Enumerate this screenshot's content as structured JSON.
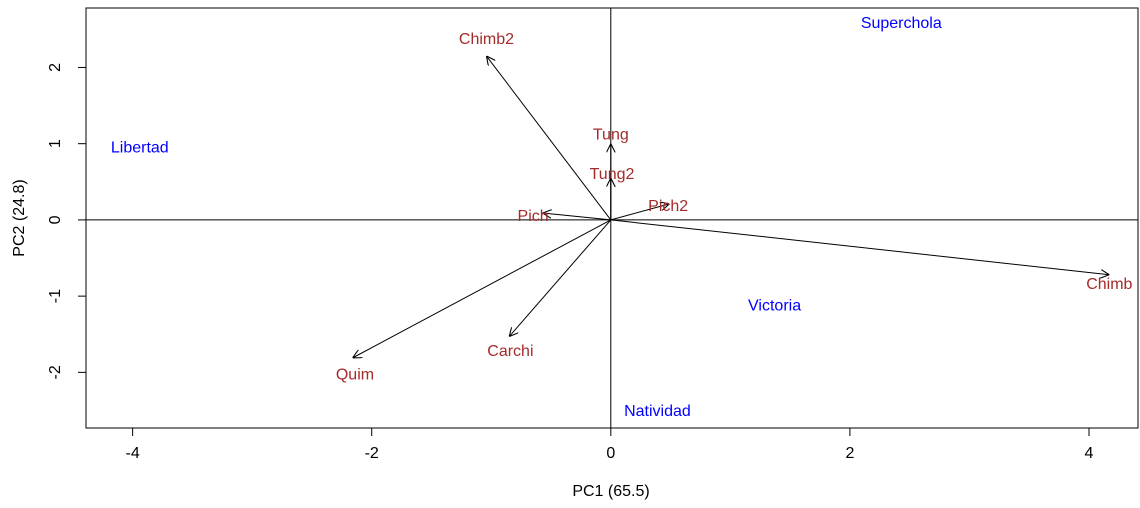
{
  "chart_data": {
    "type": "biplot",
    "xlabel": "PC1 (65.5)",
    "ylabel": "PC2 (24.8)",
    "xlim": [
      -4.39,
      4.41
    ],
    "ylim": [
      -2.73,
      2.78
    ],
    "xticks": [
      -4,
      -2,
      0,
      2,
      4
    ],
    "yticks": [
      -2,
      -1,
      0,
      1,
      2
    ],
    "observation_color": "#0000ff",
    "variable_color": "#a52a2a",
    "observations": [
      {
        "name": "Superchola",
        "x": 2.43,
        "y": 2.57
      },
      {
        "name": "Libertad",
        "x": -3.94,
        "y": 0.94
      },
      {
        "name": "Victoria",
        "x": 1.37,
        "y": -1.13
      },
      {
        "name": "Natividad",
        "x": 0.39,
        "y": -2.52
      }
    ],
    "variables": [
      {
        "name": "Chimb2",
        "x": -1.04,
        "y": 2.36,
        "arrow": [
          -1.04,
          2.15
        ]
      },
      {
        "name": "Tung",
        "x": 0.0,
        "y": 1.11,
        "arrow": [
          0.0,
          1.0
        ]
      },
      {
        "name": "Tung2",
        "x": 0.01,
        "y": 0.59,
        "arrow": [
          0.0,
          0.55
        ]
      },
      {
        "name": "Pich2",
        "x": 0.48,
        "y": 0.17,
        "arrow": [
          0.49,
          0.21
        ]
      },
      {
        "name": "Pich",
        "x": -0.65,
        "y": 0.04,
        "arrow": [
          -0.57,
          0.09
        ]
      },
      {
        "name": "Chimb",
        "x": 4.17,
        "y": -0.85,
        "arrow": [
          4.17,
          -0.72
        ]
      },
      {
        "name": "Carchi",
        "x": -0.84,
        "y": -1.73,
        "arrow": [
          -0.85,
          -1.53
        ]
      },
      {
        "name": "Quim",
        "x": -2.14,
        "y": -2.04,
        "arrow": [
          -2.16,
          -1.81
        ]
      }
    ]
  }
}
